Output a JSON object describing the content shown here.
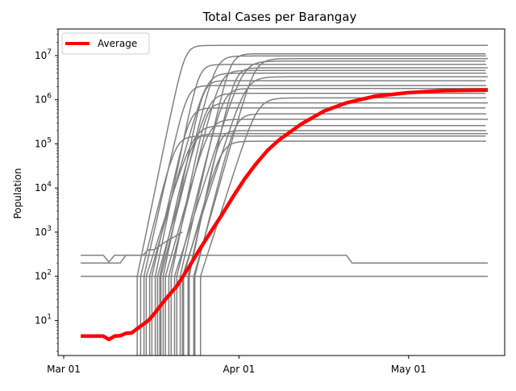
{
  "chart_data": {
    "type": "line",
    "title": "Total Cases per Barangay",
    "xlabel": "",
    "ylabel": "Population",
    "yscale": "log",
    "ylim": [
      1.6,
      40000000
    ],
    "xlim": [
      "2020-02-29",
      "2020-05-18"
    ],
    "grid": false,
    "legend": {
      "position": "top-left",
      "entries": [
        "Average"
      ]
    },
    "x_ticks": [
      {
        "date": "2020-03-01",
        "label": "Mar 01"
      },
      {
        "date": "2020-04-01",
        "label": "Apr 01"
      },
      {
        "date": "2020-05-01",
        "label": "May 01"
      }
    ],
    "y_ticks": [
      {
        "value": 10,
        "base": "10",
        "exp": "1"
      },
      {
        "value": 100,
        "base": "10",
        "exp": "2"
      },
      {
        "value": 1000,
        "base": "10",
        "exp": "3"
      },
      {
        "value": 10000,
        "base": "10",
        "exp": "4"
      },
      {
        "value": 100000,
        "base": "10",
        "exp": "5"
      },
      {
        "value": 1000000,
        "base": "10",
        "exp": "6"
      },
      {
        "value": 10000000,
        "base": "10",
        "exp": "7"
      }
    ],
    "average_series": {
      "name": "Average",
      "color": "#ff0000",
      "points": [
        [
          "2020-03-04",
          4.4
        ],
        [
          "2020-03-08",
          4.4
        ],
        [
          "2020-03-09",
          3.7
        ],
        [
          "2020-03-10",
          4.4
        ],
        [
          "2020-03-11",
          4.5
        ],
        [
          "2020-03-12",
          5.1
        ],
        [
          "2020-03-13",
          5.2
        ],
        [
          "2020-03-14",
          6.5
        ],
        [
          "2020-03-16",
          10
        ],
        [
          "2020-03-17",
          14
        ],
        [
          "2020-03-19",
          30
        ],
        [
          "2020-03-21",
          60
        ],
        [
          "2020-03-23",
          150
        ],
        [
          "2020-03-25",
          400
        ],
        [
          "2020-03-27",
          1000
        ],
        [
          "2020-03-29",
          2500
        ],
        [
          "2020-03-31",
          6500
        ],
        [
          "2020-04-02",
          16000
        ],
        [
          "2020-04-04",
          35000
        ],
        [
          "2020-04-06",
          70000
        ],
        [
          "2020-04-08",
          120000
        ],
        [
          "2020-04-12",
          280000
        ],
        [
          "2020-04-16",
          550000
        ],
        [
          "2020-04-20",
          850000
        ],
        [
          "2020-04-25",
          1200000
        ],
        [
          "2020-05-01",
          1450000
        ],
        [
          "2020-05-07",
          1600000
        ],
        [
          "2020-05-15",
          1650000
        ]
      ]
    },
    "barangay_series": {
      "color": "#808080",
      "plateau_values": [
        17000000,
        11000000,
        9800000,
        8500000,
        7500000,
        6300000,
        5300000,
        4600000,
        4000000,
        3300000,
        2700000,
        2100000,
        1800000,
        1400000,
        1100000,
        850000,
        650000,
        480000,
        360000,
        260000,
        200000,
        170000,
        150000,
        115000
      ]
    },
    "flat_series": [
      {
        "points": [
          [
            "2020-03-04",
            300
          ],
          [
            "2020-03-08",
            300
          ],
          [
            "2020-03-09",
            210
          ],
          [
            "2020-03-10",
            300
          ],
          [
            "2020-04-20",
            300
          ],
          [
            "2020-04-21",
            200
          ],
          [
            "2020-05-15",
            200
          ]
        ]
      },
      {
        "points": [
          [
            "2020-03-04",
            200
          ],
          [
            "2020-03-11",
            200
          ],
          [
            "2020-03-12",
            300
          ],
          [
            "2020-03-15",
            300
          ],
          [
            "2020-03-16",
            400
          ],
          [
            "2020-03-17",
            400
          ],
          [
            "2020-03-19",
            600
          ],
          [
            "2020-03-22",
            1000
          ]
        ]
      },
      {
        "points": [
          [
            "2020-03-04",
            100
          ],
          [
            "2020-05-15",
            100
          ]
        ]
      }
    ]
  }
}
